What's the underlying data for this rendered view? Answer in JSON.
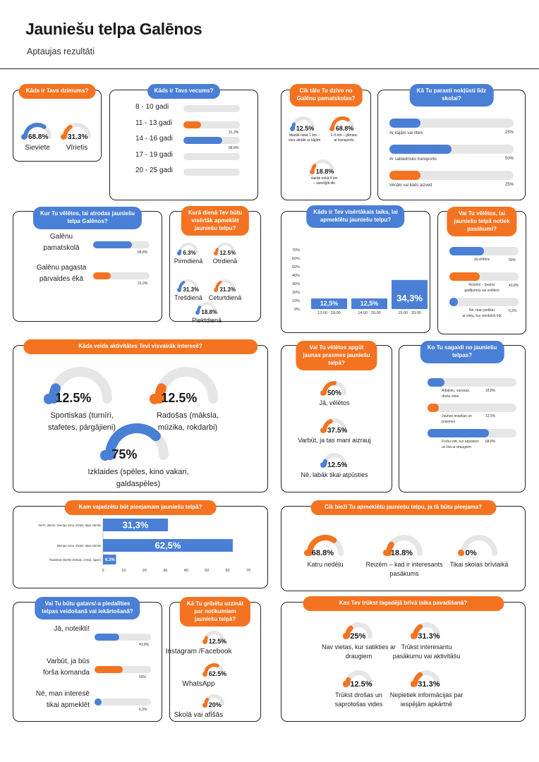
{
  "header": {
    "title": "Jauniešu telpa Galēnos",
    "subtitle": "Aptaujas rezultāti"
  },
  "colors": {
    "orange": "#f47321",
    "blue": "#4a7fd6",
    "gray": "#e6e6e6"
  },
  "gender": {
    "question": "Kāds ir Tavs dzimums?",
    "items": [
      {
        "pct": "68.8%",
        "label": "Sieviete",
        "value": 68.8,
        "color": "blue"
      },
      {
        "pct": "31.3%",
        "label": "Vīrietis",
        "value": 31.3,
        "color": "orange"
      }
    ]
  },
  "age": {
    "question": "Kāds ir Tavs vecums?",
    "items": [
      {
        "label": "8 - 10 gadi",
        "value": 0,
        "note": ""
      },
      {
        "label": "11 - 13 gadi",
        "value": 31.3,
        "note": "31,3%",
        "color": "orange"
      },
      {
        "label": "14 - 16 gadi",
        "value": 68.8,
        "note": "68,8%",
        "color": "blue"
      },
      {
        "label": "17 - 19 gadi",
        "value": 0,
        "note": ""
      },
      {
        "label": "20 - 25 gadi",
        "value": 0,
        "note": ""
      }
    ]
  },
  "distance": {
    "question_line1": "Cik tālu Tu dzīvo no",
    "question_line2": "Galēnu pamatskolas?",
    "items": [
      {
        "pct": "12.5%",
        "line1": "Mazāk nekā 1 km –",
        "line2": "varu atnākt ar kājām",
        "value": 12.5,
        "color": "blue"
      },
      {
        "pct": "68.8%",
        "line1": "1–5 km – jābrauc",
        "line2": "ar transportu",
        "value": 68.8,
        "color": "orange"
      },
      {
        "pct": "18.8%",
        "line1": "Vairāk nekā 5 km",
        "line2": "– sarežģīti tikt",
        "value": 18.8,
        "color": "orange"
      }
    ]
  },
  "transport": {
    "question_line1": "Kā Tu parasti nokļūsti līdz",
    "question_line2": "skolai?",
    "items": [
      {
        "label": "Ar kājām vai riteni",
        "note": "25%",
        "value": 25,
        "color": "blue"
      },
      {
        "label": "Ar sabiedrisko transportu",
        "note": "50%",
        "value": 50,
        "color": "blue"
      },
      {
        "label": "Vecāki vai kāds aizved",
        "note": "25%",
        "value": 25,
        "color": "orange"
      }
    ]
  },
  "location": {
    "question_line1": "Kur Tu vēlētos, lai atrodas jauniešu",
    "question_line2": "telpa Galēnos?",
    "items": [
      {
        "line1": "Galēnu",
        "line2": "pamatskolā",
        "note": "68,8%",
        "value": 68.8,
        "color": "blue"
      },
      {
        "line1": "Galēnu pagasta",
        "line2": "pārvaldes ēkā",
        "note": "31,3%",
        "value": 31.3,
        "color": "orange"
      }
    ]
  },
  "day": {
    "question_line1": "Kurā dienā Tev būtu",
    "question_line2": "visērtāk apmeklēt",
    "question_line3": "jauniešu telpu?",
    "items": [
      {
        "pct": "6.3%",
        "label": "Pirmdienā",
        "value": 6.3,
        "color": "blue"
      },
      {
        "pct": "12.5%",
        "label": "Otrdienā",
        "value": 12.5,
        "color": "orange"
      },
      {
        "pct": "31.3%",
        "label": "Trešdienā",
        "value": 31.3,
        "color": "blue"
      },
      {
        "pct": "31.3%",
        "label": "Ceturtdienā",
        "value": 31.3,
        "color": "orange"
      },
      {
        "pct": "18.8%",
        "label": "Piektdienā",
        "value": 18.8,
        "color": "blue"
      }
    ]
  },
  "time": {
    "question_line1": "Kāds ir Tev visērtākais laiks, lai",
    "question_line2": "apmeklētu jauniešu telpu?"
  },
  "chart_data": [
    {
      "type": "bar",
      "categories": [
        "13:00 - 18:00",
        "14:00 - 20:00",
        "15:00 - 20:00"
      ],
      "values": [
        12.5,
        12.5,
        34.3
      ],
      "data_labels": [
        "12,5%",
        "12,5%",
        "34,3%"
      ],
      "ylim": [
        0,
        70
      ],
      "yticks": [
        "0%",
        "10%",
        "20%",
        "30%",
        "40%",
        "50%",
        "60%",
        "70%"
      ],
      "grid": false
    },
    {
      "type": "bar",
      "orientation": "horizontal",
      "categories": [
        "Wi-Fi, dators, mierīga zona, dīvāni, tējas stūrītis",
        "Mierīga zona, dīvāni, tējas stūrītis",
        "Radošais stūrītis (krāsas, zīmuļi, lapas)"
      ],
      "values": [
        31.3,
        62.5,
        6.3
      ],
      "data_labels": [
        "31,3%",
        "62,5%",
        "6.3%"
      ],
      "xlim": [
        0,
        70
      ],
      "xticks": [
        "0",
        "10",
        "20",
        "30",
        "40",
        "50",
        "60",
        "70"
      ]
    }
  ],
  "events": {
    "question_line1": "Vai Tu vēlētos, lai",
    "question_line2": "jauniešu telpā notiek",
    "question_line3": "pasākumi?",
    "items": [
      {
        "line1": "Jā,vēlētos",
        "line2": "",
        "note": "50%",
        "value": 50,
        "color": "blue"
      },
      {
        "line1": "Reizēm – īpašos",
        "line2": "gadījumos vai svētkos",
        "note": "43,8%",
        "value": 43.8,
        "color": "orange"
      },
      {
        "line1": "Nē, man pietiktu",
        "line2": "ar vietu, kur vienkārši būt",
        "note": "6,3%",
        "value": 6.3,
        "color": "blue"
      }
    ]
  },
  "activities": {
    "question": "Kāda veida aktivitātes Tevi visvairāk interesē?",
    "items": [
      {
        "pct": "12.5%",
        "line1": "Sportiskas (turnīri,",
        "line2": "stafetes, pārgājieni)",
        "value": 12.5,
        "color": "blue"
      },
      {
        "pct": "12.5%",
        "line1": "Radošas (māksla,",
        "line2": "mūzika, rokdarbi)",
        "value": 12.5,
        "color": "orange"
      },
      {
        "pct": "75%",
        "line1": "Izklaides (spēles, kino vakari, galdaspēles)",
        "line2": "",
        "value": 75,
        "color": "blue"
      }
    ]
  },
  "skills": {
    "question_line1": "Vai Tu vēlētos apgūt",
    "question_line2": "jaunas prasmes jauniešu",
    "question_line3": "telpā?",
    "items": [
      {
        "pct": "50%",
        "label": "Jā, vēlētos",
        "value": 50,
        "color": "orange"
      },
      {
        "pct": "37.5%",
        "label": "Varbūt, ja tas mani aizrauj",
        "value": 37.5,
        "color": "orange"
      },
      {
        "pct": "12.5%",
        "label": "Nē, labāk tikai atpūsties",
        "value": 12.5,
        "color": "blue"
      }
    ]
  },
  "expect": {
    "question_line1": "Ko Tu sagaidi no jauniešu",
    "question_line2": "telpas?",
    "items": [
      {
        "line1": "Atbalstu, sarunas,",
        "line2": "drošu vietu",
        "note": "18,8%",
        "value": 18.8,
        "color": "blue"
      },
      {
        "line1": "Jaunas iespējas un",
        "line2": "prasmes",
        "note": "12,5%",
        "value": 12.5,
        "color": "orange"
      },
      {
        "line1": "Foršu vidi, kur atpūsties",
        "line2": "un būt ar draugiem",
        "note": "68,8%",
        "value": 68.8,
        "color": "blue"
      }
    ]
  },
  "needs": {
    "question": "Kam vajadzētu būt pieejamam jauniešu telpā?"
  },
  "frequency": {
    "question": "Cik bieži Tu apmeklētu jauniešu telpu, ja tā būtu pieejama?",
    "items": [
      {
        "pct": "68.8%",
        "line1": "Katru nedēļu",
        "line2": "",
        "value": 68.8,
        "color": "orange"
      },
      {
        "pct": "18.8%",
        "line1": "Reizēm – kad ir interesants",
        "line2": "pasākums",
        "value": 18.8,
        "color": "orange"
      },
      {
        "pct": "0%",
        "line1": "Tikai skolas brīvlaikā",
        "line2": "",
        "value": 0,
        "color": "orange"
      }
    ]
  },
  "participate": {
    "question_line1": "Vai Tu būtu gatavs/-a piedalīties",
    "question_line2": "telpas veidošanā vai iekārtošanā?",
    "items": [
      {
        "line1": "Jā, noteikti!",
        "line2": "",
        "note": "43,8%",
        "value": 43.8,
        "color": "blue"
      },
      {
        "line1": "Varbūt, ja būs",
        "line2": "forša komanda",
        "note": "50%",
        "value": 50,
        "color": "orange"
      },
      {
        "line1": "Nē, man interesē",
        "line2": "tikai apmeklēt",
        "note": "6,3%",
        "value": 6.3,
        "color": "blue"
      }
    ]
  },
  "info": {
    "question_line1": "Kā Tu gribētu uzzināt",
    "question_line2": "par notikumiem",
    "question_line3": "jauniešu telpā?",
    "items": [
      {
        "pct": "12.5%",
        "label": "Instagram /Facebook",
        "value": 12.5,
        "color": "orange"
      },
      {
        "pct": "62.5%",
        "label": "WhatsApp",
        "value": 62.5,
        "color": "orange"
      },
      {
        "pct": "20%",
        "label": "Skolā vai afišās",
        "value": 20,
        "color": "orange"
      }
    ]
  },
  "lack": {
    "question": "Kas Tev trūkst tagadējā brīvā laika pavadīšanā?",
    "items": [
      {
        "pct": "25%",
        "line1": "Nav vietas, kur satikties ar",
        "line2": "draugiem",
        "value": 25,
        "color": "orange"
      },
      {
        "pct": "31.3%",
        "line1": "Trūkst interesantu",
        "line2": "pasākumu vai aktivitāšu",
        "value": 31.3,
        "color": "orange"
      },
      {
        "pct": "12.5%",
        "line1": "Trūkst drošas un",
        "line2": "saprotošas vides",
        "value": 12.5,
        "color": "orange"
      },
      {
        "pct": "31.3%",
        "line1": "Nepietiek informācijas par",
        "line2": "iespējām apkārtnē",
        "value": 31.3,
        "color": "orange"
      }
    ]
  }
}
